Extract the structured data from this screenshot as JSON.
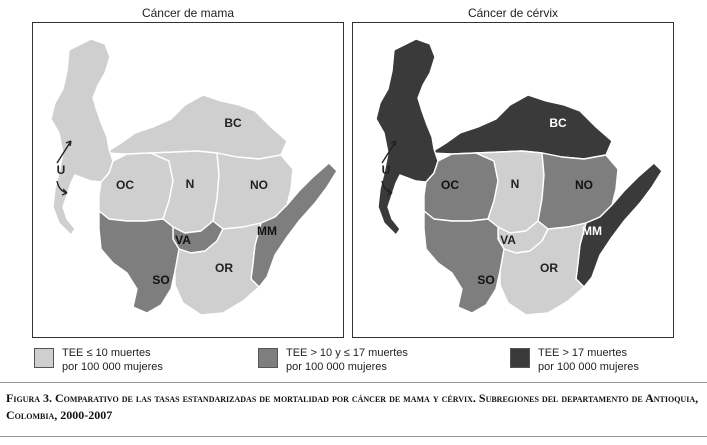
{
  "maps": [
    {
      "title": "Cáncer de mama",
      "regions": [
        {
          "code": "BC",
          "category": "low"
        },
        {
          "code": "U",
          "category": "low"
        },
        {
          "code": "OC",
          "category": "low"
        },
        {
          "code": "N",
          "category": "low"
        },
        {
          "code": "NO",
          "category": "low"
        },
        {
          "code": "VA",
          "category": "mid"
        },
        {
          "code": "MM",
          "category": "mid"
        },
        {
          "code": "OR",
          "category": "low"
        },
        {
          "code": "SO",
          "category": "mid"
        }
      ]
    },
    {
      "title": "Cáncer de cérvix",
      "regions": [
        {
          "code": "BC",
          "category": "high"
        },
        {
          "code": "U",
          "category": "high"
        },
        {
          "code": "OC",
          "category": "mid"
        },
        {
          "code": "N",
          "category": "low"
        },
        {
          "code": "NO",
          "category": "mid"
        },
        {
          "code": "VA",
          "category": "low"
        },
        {
          "code": "MM",
          "category": "high"
        },
        {
          "code": "OR",
          "category": "low"
        },
        {
          "code": "SO",
          "category": "mid"
        }
      ]
    }
  ],
  "legend": [
    {
      "key": "low",
      "color": "#cfcfcf",
      "line1": "TEE ≤ 10 muertes",
      "line2": "por 100 000 mujeres"
    },
    {
      "key": "mid",
      "color": "#7e7e7e",
      "line1": "TEE > 10 y ≤ 17 muertes",
      "line2": "por 100 000 mujeres"
    },
    {
      "key": "high",
      "color": "#3a3a3a",
      "line1": "TEE > 17 muertes",
      "line2": "por 100 000 mujeres"
    }
  ],
  "caption": "Figura 3. Comparativo de las tasas estandarizadas de mortalidad por cáncer de mama y cérvix. Subregiones del departamento de Antioquia, Colombia, 2000-2007"
}
